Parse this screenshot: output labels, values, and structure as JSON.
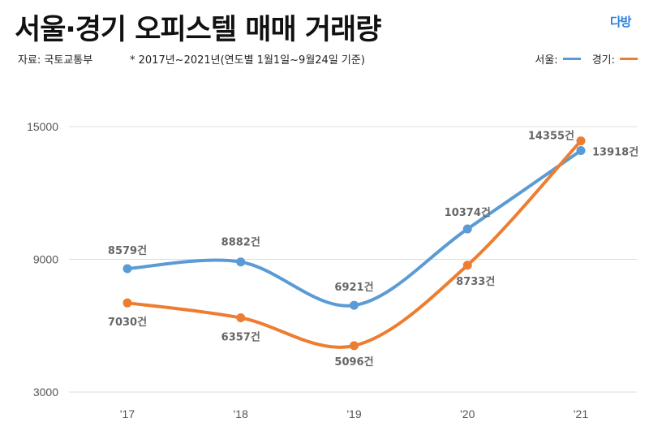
{
  "title": "서울·경기 오피스텔 매매 거래량",
  "logo": "다방",
  "source": "자료: 국토교통부",
  "note": "* 2017년~2021년(연도별 1월1일~9월24일 기준)",
  "chart_data": {
    "type": "line",
    "title": "서울·경기 오피스텔 매매 거래량",
    "categories": [
      "'17",
      "'18",
      "'19",
      "'20",
      "'21"
    ],
    "yticks": [
      "15000",
      "9000",
      "3000"
    ],
    "ylim": [
      3000,
      15000
    ],
    "grid": true,
    "legend_position": "top-right",
    "unit_suffix": "건",
    "series": [
      {
        "name": "서울",
        "legend_label": "서울:",
        "color": "#5b9bd5",
        "values": [
          8579,
          8882,
          6921,
          10374,
          13918
        ],
        "labels": [
          "8579건",
          "8882건",
          "6921건",
          "10374건",
          "13918건"
        ]
      },
      {
        "name": "경기",
        "legend_label": "경기:",
        "color": "#ed7d31",
        "values": [
          7030,
          6357,
          5096,
          8733,
          14355
        ],
        "labels": [
          "7030건",
          "6357건",
          "5096건",
          "8733건",
          "14355건"
        ]
      }
    ]
  }
}
